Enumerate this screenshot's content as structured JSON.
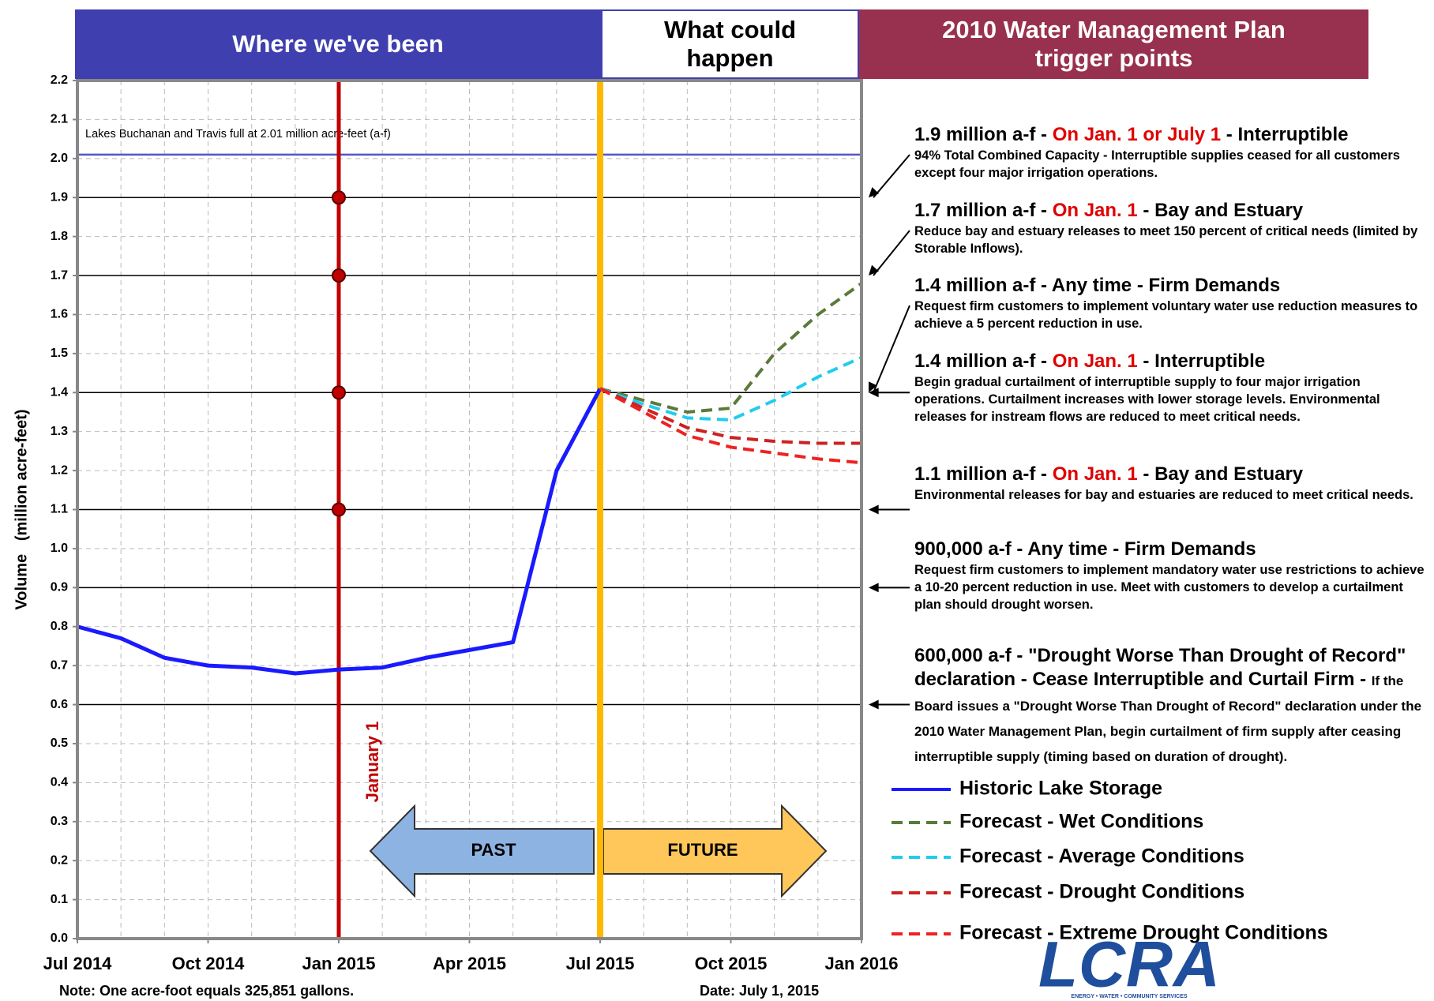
{
  "chart_data": {
    "type": "line",
    "headers": [
      {
        "text": "Where we've been",
        "bg": "#3f3faf",
        "fg": "#ffffff"
      },
      {
        "text": "What could happen",
        "bg": "#ffffff",
        "fg": "#000000"
      },
      {
        "text": "2010 Water Management Plan trigger points",
        "bg": "#98304f",
        "fg": "#ffffff"
      }
    ],
    "ylabel": "Volume   (million acre-feet)",
    "xlim": [
      "2014-07",
      "2016-01"
    ],
    "xticks": [
      {
        "value": "2014-07",
        "label": "Jul 2014"
      },
      {
        "value": "2014-10",
        "label": "Oct 2014"
      },
      {
        "value": "2015-01",
        "label": "Jan 2015"
      },
      {
        "value": "2015-04",
        "label": "Apr 2015"
      },
      {
        "value": "2015-07",
        "label": "Jul 2015"
      },
      {
        "value": "2015-10",
        "label": "Oct 2015"
      },
      {
        "value": "2016-01",
        "label": "Jan 2016"
      }
    ],
    "xgrid": [
      "2014-07",
      "2014-08",
      "2014-09",
      "2014-10",
      "2014-11",
      "2014-12",
      "2015-01",
      "2015-02",
      "2015-03",
      "2015-04",
      "2015-05",
      "2015-06",
      "2015-07",
      "2015-08",
      "2015-09",
      "2015-10",
      "2015-11",
      "2015-12",
      "2016-01"
    ],
    "ylim": [
      0,
      2.2
    ],
    "yticks": [
      {
        "value": 0,
        "label": "0.0"
      },
      0.1,
      0.2,
      0.3,
      0.4,
      0.5,
      0.6,
      0.7,
      0.8,
      0.9,
      {
        "value": 1,
        "label": "1.0"
      },
      1.1,
      1.2,
      1.3,
      1.4,
      1.5,
      1.6,
      1.7,
      1.8,
      1.9,
      {
        "value": 2,
        "label": "2.0"
      },
      2.1,
      2.2
    ],
    "grid": true,
    "series": [
      {
        "name": "Historic Lake Storage",
        "color": "#1a1aff",
        "dashed": false,
        "x": [
          "2014-07",
          "2014-08",
          "2014-09",
          "2014-10",
          "2014-11",
          "2014-12",
          "2015-01",
          "2015-02",
          "2015-03",
          "2015-04",
          "2015-05",
          "2015-06",
          "2015-07"
        ],
        "values": [
          0.8,
          0.77,
          0.72,
          0.7,
          0.695,
          0.68,
          0.69,
          0.695,
          0.72,
          0.74,
          0.76,
          1.2,
          1.41
        ]
      },
      {
        "name": "Forecast - Wet Conditions",
        "color": "#5a7a3a",
        "dashed": true,
        "x": [
          "2015-07",
          "2015-08",
          "2015-09",
          "2015-10",
          "2015-11",
          "2015-12",
          "2016-01"
        ],
        "values": [
          1.41,
          1.38,
          1.35,
          1.36,
          1.5,
          1.6,
          1.68
        ]
      },
      {
        "name": "Forecast - Average Conditions",
        "color": "#22ccee",
        "dashed": true,
        "x": [
          "2015-07",
          "2015-08",
          "2015-09",
          "2015-10",
          "2015-11",
          "2015-12",
          "2016-01"
        ],
        "values": [
          1.41,
          1.37,
          1.335,
          1.33,
          1.38,
          1.44,
          1.49
        ]
      },
      {
        "name": "Forecast - Drought Conditions",
        "color": "#cc2222",
        "dashed": true,
        "x": [
          "2015-07",
          "2015-08",
          "2015-09",
          "2015-10",
          "2015-11",
          "2015-12",
          "2016-01"
        ],
        "values": [
          1.41,
          1.36,
          1.31,
          1.285,
          1.275,
          1.27,
          1.27
        ]
      },
      {
        "name": "Forecast - Extreme Drought Conditions",
        "color": "#ee2222",
        "dashed": true,
        "x": [
          "2015-07",
          "2015-08",
          "2015-09",
          "2015-10",
          "2015-11",
          "2015-12",
          "2016-01"
        ],
        "values": [
          1.41,
          1.35,
          1.29,
          1.26,
          1.245,
          1.23,
          1.22
        ]
      }
    ],
    "full_line": {
      "value": 2.01,
      "color": "#5555cc",
      "label": "Lakes Buchanan and Travis full at 2.01 million acre-feet (a-f)"
    },
    "january_line": {
      "x": "2015-01",
      "label": "January 1",
      "color": "#c00000",
      "markers": [
        1.9,
        1.7,
        1.4,
        1.1
      ]
    },
    "today_line": {
      "x": "2015-07",
      "color": "#ffb800"
    },
    "arrows": [
      {
        "label": "PAST",
        "color": "#8db3e2"
      },
      {
        "label": "FUTURE",
        "color": "#ffc65a"
      }
    ],
    "triggers": [
      {
        "value": 1.9,
        "heading": [
          {
            "text": "1.9 million a-f - ",
            "color": "#000000"
          },
          {
            "text": "On Jan. 1 or July 1",
            "color": "#e00000"
          },
          {
            "text": " - Interruptible",
            "color": "#000000"
          }
        ],
        "body": "94% Total Combined Capacity - Interruptible supplies ceased for all customers except four major irrigation operations."
      },
      {
        "value": 1.7,
        "heading": [
          {
            "text": "1.7 million a-f - ",
            "color": "#000000"
          },
          {
            "text": "On Jan. 1",
            "color": "#e00000"
          },
          {
            "text": " - Bay and Estuary",
            "color": "#000000"
          }
        ],
        "body": "Reduce bay and estuary releases to meet 150 percent of critical needs (limited by Storable Inflows)."
      },
      {
        "value": 1.4,
        "heading": [
          {
            "text": "1.4 million a-f - Any time - Firm Demands",
            "color": "#000000"
          }
        ],
        "body": "Request firm customers to implement voluntary water use reduction measures to achieve a 5 percent reduction in use."
      },
      {
        "value": 1.4,
        "heading": [
          {
            "text": "1.4 million a-f - ",
            "color": "#000000"
          },
          {
            "text": "On Jan. 1",
            "color": "#e00000"
          },
          {
            "text": " - Interruptible",
            "color": "#000000"
          }
        ],
        "body": "Begin gradual curtailment of interruptible supply to four major irrigation operations.  Curtailment increases with lower storage levels.  Environmental releases for instream flows are reduced to meet critical needs."
      },
      {
        "value": 1.1,
        "heading": [
          {
            "text": "1.1 million a-f - ",
            "color": "#000000"
          },
          {
            "text": "On Jan. 1",
            "color": "#e00000"
          },
          {
            "text": " - Bay and Estuary",
            "color": "#000000"
          }
        ],
        "body": "Environmental releases for bay and estuaries are reduced to meet critical needs."
      },
      {
        "value": 0.9,
        "heading": [
          {
            "text": "900,000 a-f - Any time - Firm Demands",
            "color": "#000000"
          }
        ],
        "body": "Request firm customers to implement mandatory water use restrictions to achieve a 10-20 percent reduction in use. Meet with customers to develop a curtailment plan should drought worsen."
      },
      {
        "value": 0.6,
        "heading": [
          {
            "text": "600,000 a-f - \"Drought Worse Than Drought of Record\" declaration - Cease Interruptible and Curtail Firm - ",
            "color": "#000000"
          }
        ],
        "body": "If the Board issues a \"Drought Worse Than Drought of Record\" declaration under the 2010 Water Management Plan, begin curtailment of firm supply after ceasing interruptible supply (timing based on duration of drought).",
        "body_inline": true
      }
    ],
    "note": "Note: One acre-foot equals 325,851 gallons.",
    "date": "Date: July 1, 2015",
    "logo": "LCRA",
    "logo_tagline": "ENERGY • WATER • COMMUNITY SERVICES"
  }
}
